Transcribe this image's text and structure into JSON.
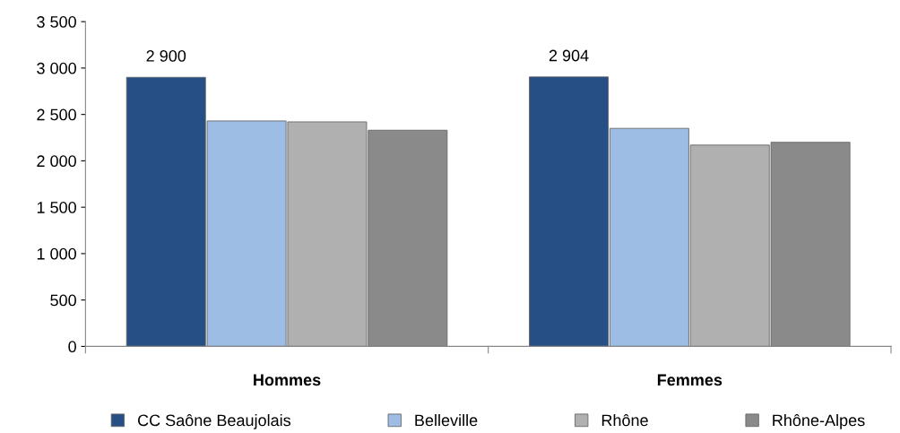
{
  "chart_data": {
    "type": "bar",
    "categories": [
      "Hommes",
      "Femmes"
    ],
    "series": [
      {
        "name": "CC Saône Beaujolais",
        "color": "#254f85",
        "values": [
          2900,
          2904
        ],
        "value_labels": [
          "2 900",
          "2 904"
        ]
      },
      {
        "name": "Belleville",
        "color": "#9dbde5",
        "values": [
          2430,
          2350
        ]
      },
      {
        "name": "Rhône",
        "color": "#b0b0b0",
        "values": [
          2420,
          2170
        ]
      },
      {
        "name": "Rhône-Alpes",
        "color": "#8a8a8a",
        "values": [
          2330,
          2200
        ]
      }
    ],
    "ylim": [
      0,
      3500
    ],
    "yticks": [
      0,
      500,
      {
        "value": 1000,
        "label": "1 000"
      },
      {
        "value": 1500,
        "label": "1 500"
      },
      {
        "value": 2000,
        "label": "2 000"
      },
      {
        "value": 2500,
        "label": "2 500"
      },
      {
        "value": 3000,
        "label": "3 000"
      },
      {
        "value": 3500,
        "label": "3 500"
      }
    ],
    "grid": false,
    "legend": "bottom"
  }
}
